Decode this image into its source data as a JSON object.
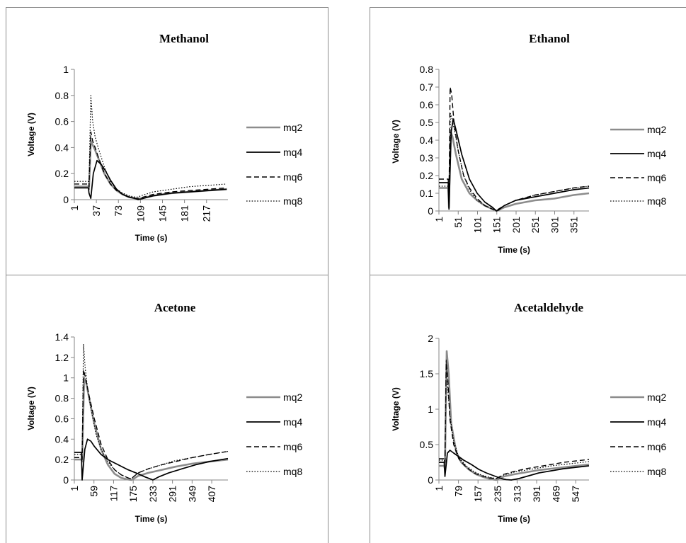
{
  "chart_data": [
    {
      "type": "line",
      "title": "Methanol",
      "xlabel": "Time (s)",
      "ylabel": "Voltage (V)",
      "ylim": [
        0,
        1
      ],
      "yticks": [
        "0",
        "0.2",
        "0.4",
        "0.6",
        "0.8",
        "1"
      ],
      "xlim": [
        1,
        252
      ],
      "xticks": [
        "1",
        "37",
        "73",
        "109",
        "145",
        "181",
        "217"
      ],
      "grid": false,
      "legend": "right",
      "series": [
        {
          "name": "mq2",
          "x": [
            1,
            24,
            25,
            28,
            31,
            35,
            40,
            50,
            60,
            70,
            80,
            90,
            100,
            105,
            110,
            130,
            160,
            190,
            220,
            250
          ],
          "y": [
            0.1,
            0.1,
            0.08,
            0.45,
            0.42,
            0.38,
            0.32,
            0.2,
            0.12,
            0.07,
            0.04,
            0.02,
            0.01,
            0.005,
            0.01,
            0.03,
            0.05,
            0.06,
            0.07,
            0.08
          ]
        },
        {
          "name": "mq4",
          "x": [
            1,
            24,
            25,
            28,
            32,
            38,
            45,
            52,
            60,
            70,
            80,
            90,
            100,
            105,
            110,
            130,
            160,
            190,
            220,
            250
          ],
          "y": [
            0.09,
            0.09,
            0.05,
            0.01,
            0.2,
            0.3,
            0.27,
            0.22,
            0.15,
            0.08,
            0.04,
            0.02,
            0.01,
            0.0,
            0.005,
            0.03,
            0.05,
            0.06,
            0.07,
            0.08
          ]
        },
        {
          "name": "mq6",
          "x": [
            1,
            24,
            25,
            28,
            31,
            35,
            40,
            50,
            60,
            70,
            80,
            90,
            100,
            105,
            110,
            130,
            160,
            190,
            220,
            250
          ],
          "y": [
            0.12,
            0.12,
            0.1,
            0.52,
            0.45,
            0.4,
            0.33,
            0.2,
            0.12,
            0.07,
            0.04,
            0.02,
            0.01,
            0.01,
            0.015,
            0.04,
            0.06,
            0.07,
            0.08,
            0.09
          ]
        },
        {
          "name": "mq8",
          "x": [
            1,
            24,
            25,
            28,
            31,
            35,
            40,
            50,
            60,
            70,
            80,
            90,
            100,
            105,
            110,
            130,
            160,
            190,
            220,
            250
          ],
          "y": [
            0.14,
            0.14,
            0.12,
            0.8,
            0.6,
            0.48,
            0.4,
            0.25,
            0.14,
            0.08,
            0.05,
            0.03,
            0.02,
            0.02,
            0.03,
            0.06,
            0.08,
            0.1,
            0.11,
            0.12
          ]
        }
      ]
    },
    {
      "type": "line",
      "title": "Ethanol",
      "xlabel": "Time (s)",
      "ylabel": "Voltage (V)",
      "ylim": [
        0,
        0.8
      ],
      "yticks": [
        "0",
        "0.1",
        "0.2",
        "0.3",
        "0.4",
        "0.5",
        "0.6",
        "0.7",
        "0.8"
      ],
      "xlim": [
        1,
        390
      ],
      "xticks": [
        "1",
        "51",
        "101",
        "151",
        "201",
        "251",
        "301",
        "351"
      ],
      "grid": false,
      "legend": "right",
      "series": [
        {
          "name": "mq2",
          "x": [
            1,
            25,
            27,
            31,
            36,
            45,
            60,
            80,
            100,
            120,
            140,
            150,
            155,
            170,
            200,
            250,
            300,
            350,
            390
          ],
          "y": [
            0.13,
            0.13,
            0.02,
            0.45,
            0.42,
            0.32,
            0.18,
            0.1,
            0.06,
            0.03,
            0.01,
            0.0,
            0.005,
            0.02,
            0.04,
            0.06,
            0.07,
            0.09,
            0.1
          ]
        },
        {
          "name": "mq4",
          "x": [
            1,
            25,
            27,
            33,
            38,
            45,
            60,
            80,
            100,
            120,
            140,
            150,
            155,
            170,
            200,
            250,
            300,
            350,
            390
          ],
          "y": [
            0.16,
            0.16,
            0.01,
            0.45,
            0.52,
            0.46,
            0.32,
            0.18,
            0.1,
            0.05,
            0.02,
            0.0,
            0.005,
            0.03,
            0.06,
            0.08,
            0.1,
            0.12,
            0.13
          ]
        },
        {
          "name": "mq6",
          "x": [
            1,
            25,
            27,
            30,
            34,
            40,
            50,
            65,
            80,
            100,
            120,
            140,
            150,
            155,
            170,
            200,
            250,
            300,
            350,
            390
          ],
          "y": [
            0.18,
            0.18,
            0.05,
            0.7,
            0.66,
            0.5,
            0.35,
            0.2,
            0.13,
            0.07,
            0.03,
            0.01,
            0.005,
            0.01,
            0.03,
            0.06,
            0.09,
            0.11,
            0.13,
            0.14
          ]
        },
        {
          "name": "mq8",
          "x": [
            1,
            25,
            27,
            31,
            35,
            42,
            52,
            65,
            80,
            100,
            120,
            140,
            150,
            155,
            170,
            200,
            250,
            300,
            350,
            390
          ],
          "y": [
            0.14,
            0.14,
            0.05,
            0.55,
            0.52,
            0.45,
            0.33,
            0.2,
            0.12,
            0.06,
            0.03,
            0.01,
            0.005,
            0.01,
            0.03,
            0.06,
            0.09,
            0.11,
            0.13,
            0.14
          ]
        }
      ]
    },
    {
      "type": "line",
      "title": "Acetone",
      "xlabel": "Time (s)",
      "ylabel": "Voltage (V)",
      "ylim": [
        0,
        1.4
      ],
      "yticks": [
        "0",
        "0.2",
        "0.4",
        "0.6",
        "0.8",
        "1",
        "1.2",
        "1.4"
      ],
      "xlim": [
        1,
        455
      ],
      "xticks": [
        "1",
        "59",
        "117",
        "175",
        "233",
        "291",
        "349",
        "407"
      ],
      "grid": false,
      "legend": "right",
      "series": [
        {
          "name": "mq2",
          "x": [
            1,
            22,
            24,
            30,
            36,
            45,
            60,
            80,
            100,
            120,
            140,
            160,
            170,
            175,
            190,
            220,
            260,
            300,
            350,
            400,
            455
          ],
          "y": [
            0.2,
            0.2,
            0.18,
            1.0,
            0.95,
            0.8,
            0.55,
            0.3,
            0.15,
            0.06,
            0.02,
            0.005,
            0.0,
            0.01,
            0.04,
            0.07,
            0.1,
            0.13,
            0.16,
            0.18,
            0.2
          ]
        },
        {
          "name": "mq4",
          "x": [
            1,
            22,
            24,
            32,
            40,
            50,
            60,
            80,
            100,
            130,
            160,
            190,
            210,
            230,
            233,
            250,
            280,
            320,
            360,
            400,
            455
          ],
          "y": [
            0.27,
            0.27,
            0.0,
            0.3,
            0.4,
            0.38,
            0.33,
            0.25,
            0.2,
            0.15,
            0.1,
            0.06,
            0.03,
            0.005,
            0.0,
            0.03,
            0.07,
            0.11,
            0.15,
            0.18,
            0.21
          ]
        },
        {
          "name": "mq6",
          "x": [
            1,
            22,
            24,
            28,
            34,
            45,
            60,
            80,
            100,
            120,
            140,
            160,
            170,
            175,
            190,
            220,
            260,
            300,
            350,
            400,
            455
          ],
          "y": [
            0.22,
            0.22,
            0.2,
            1.08,
            1.0,
            0.82,
            0.6,
            0.35,
            0.2,
            0.1,
            0.05,
            0.02,
            0.01,
            0.03,
            0.07,
            0.11,
            0.15,
            0.18,
            0.22,
            0.25,
            0.28
          ]
        },
        {
          "name": "mq8",
          "x": [
            1,
            22,
            24,
            28,
            33,
            40,
            50,
            65,
            80,
            100,
            120,
            140,
            160,
            170,
            175,
            190,
            220,
            260,
            300,
            350,
            400,
            455
          ],
          "y": [
            0.25,
            0.25,
            0.2,
            1.33,
            1.1,
            0.9,
            0.7,
            0.45,
            0.3,
            0.18,
            0.1,
            0.05,
            0.02,
            0.01,
            0.03,
            0.07,
            0.11,
            0.15,
            0.19,
            0.22,
            0.25,
            0.28
          ]
        }
      ]
    },
    {
      "type": "line",
      "title": "Acetaldehyde",
      "xlabel": "Time (s)",
      "ylabel": "Voltage (V)",
      "ylim": [
        0,
        2
      ],
      "yticks": [
        "0",
        "0.5",
        "1",
        "1.5",
        "2"
      ],
      "xlim": [
        1,
        600
      ],
      "xticks": [
        "1",
        "79",
        "157",
        "235",
        "313",
        "391",
        "469",
        "547"
      ],
      "grid": false,
      "legend": "right",
      "series": [
        {
          "name": "mq2",
          "x": [
            1,
            22,
            25,
            32,
            40,
            50,
            70,
            90,
            120,
            150,
            180,
            210,
            230,
            240,
            260,
            300,
            350,
            400,
            450,
            500,
            550,
            600
          ],
          "y": [
            0.2,
            0.2,
            0.15,
            1.82,
            1.5,
            0.8,
            0.4,
            0.25,
            0.15,
            0.08,
            0.04,
            0.01,
            0.0,
            0.02,
            0.05,
            0.08,
            0.11,
            0.14,
            0.16,
            0.18,
            0.2,
            0.22
          ]
        },
        {
          "name": "mq4",
          "x": [
            1,
            22,
            25,
            35,
            45,
            60,
            80,
            100,
            130,
            160,
            190,
            220,
            250,
            270,
            290,
            320,
            360,
            400,
            450,
            500,
            550,
            600
          ],
          "y": [
            0.25,
            0.25,
            0.05,
            0.38,
            0.42,
            0.38,
            0.33,
            0.28,
            0.22,
            0.15,
            0.1,
            0.06,
            0.02,
            0.005,
            0.0,
            0.02,
            0.06,
            0.1,
            0.13,
            0.16,
            0.18,
            0.2
          ]
        },
        {
          "name": "mq6",
          "x": [
            1,
            22,
            25,
            30,
            36,
            45,
            60,
            80,
            110,
            140,
            170,
            200,
            230,
            240,
            260,
            300,
            350,
            400,
            450,
            500,
            550,
            600
          ],
          "y": [
            0.3,
            0.3,
            0.25,
            1.65,
            1.45,
            0.85,
            0.5,
            0.3,
            0.18,
            0.1,
            0.06,
            0.03,
            0.02,
            0.04,
            0.08,
            0.12,
            0.16,
            0.19,
            0.22,
            0.25,
            0.27,
            0.29
          ]
        },
        {
          "name": "mq8",
          "x": [
            1,
            22,
            25,
            30,
            36,
            45,
            60,
            80,
            110,
            140,
            170,
            200,
            230,
            240,
            260,
            300,
            350,
            400,
            450,
            500,
            550,
            600
          ],
          "y": [
            0.28,
            0.28,
            0.25,
            1.7,
            1.3,
            0.9,
            0.55,
            0.32,
            0.2,
            0.12,
            0.07,
            0.04,
            0.02,
            0.04,
            0.07,
            0.11,
            0.14,
            0.17,
            0.2,
            0.22,
            0.24,
            0.26
          ]
        }
      ]
    }
  ],
  "styles": {
    "mq2": {
      "color": "#8c8c8c",
      "dash": "solid",
      "width": 2.6
    },
    "mq4": {
      "color": "#000000",
      "dash": "solid",
      "width": 1.7
    },
    "mq6": {
      "color": "#000000",
      "dash": "dashed",
      "width": 1.4
    },
    "mq8": {
      "color": "#000000",
      "dash": "dotted",
      "width": 1.2
    }
  }
}
